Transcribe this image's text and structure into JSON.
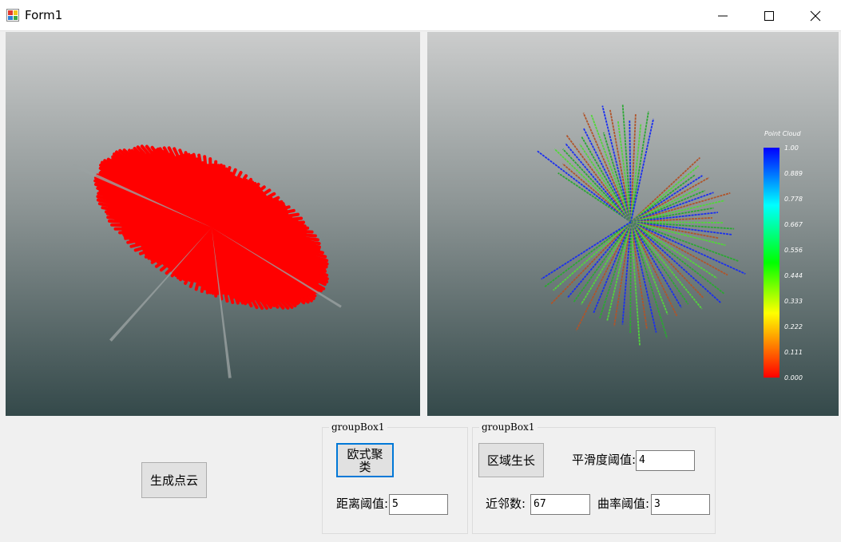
{
  "window": {
    "title": "Form1"
  },
  "viewer_left": {
    "point_color": "#ff0000"
  },
  "viewer_right": {
    "colorbar": {
      "title": "Point Cloud",
      "labels": [
        "1.00",
        "0.889",
        "0.778",
        "0.667",
        "0.556",
        "0.444",
        "0.333",
        "0.222",
        "0.111",
        "0.000"
      ]
    }
  },
  "controls": {
    "generate_button": "生成点云",
    "groupbox1": {
      "title": "groupBox1",
      "euclid_button": "欧式聚类",
      "distance_label": "距离阈值:",
      "distance_value": "5"
    },
    "groupbox2": {
      "title": "groupBox1",
      "region_button": "区域生长",
      "smooth_label": "平滑度阈值:",
      "smooth_value": "4",
      "neighbor_label": "近邻数:",
      "neighbor_value": "67",
      "curvature_label": "曲率阈值:",
      "curvature_value": "3"
    }
  },
  "colors": {
    "accent": "#0078d7",
    "line_colors": [
      "#2aa832",
      "#1a2ef0",
      "#b0542a",
      "#52d63a"
    ]
  }
}
